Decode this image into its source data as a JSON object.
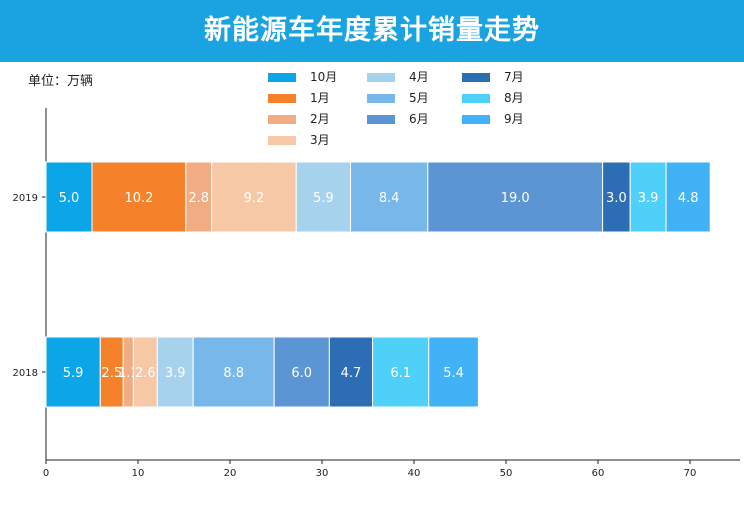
{
  "header": {
    "title": "新能源车年度累计销量走势"
  },
  "unit_label": "单位：万辆",
  "chart_data": {
    "type": "bar",
    "orientation": "horizontal",
    "stacked": true,
    "title": "新能源车年度累计销量走势",
    "xlabel": "",
    "ylabel": "",
    "xlim": [
      0,
      76
    ],
    "x_ticks": [
      0,
      10,
      20,
      30,
      40,
      50,
      60,
      70
    ],
    "categories": [
      "2019",
      "2018"
    ],
    "legend_position": "top",
    "series": [
      {
        "name": "10月",
        "color": "#0aa6e8",
        "values": [
          5.0,
          5.9
        ]
      },
      {
        "name": "1月",
        "color": "#f5822a",
        "values": [
          10.2,
          2.5
        ]
      },
      {
        "name": "2月",
        "color": "#f2ac84",
        "values": [
          2.8,
          1.1
        ]
      },
      {
        "name": "3月",
        "color": "#f6c8a6",
        "values": [
          9.2,
          2.6
        ]
      },
      {
        "name": "4月",
        "color": "#a6d2ee",
        "values": [
          5.9,
          3.9
        ]
      },
      {
        "name": "5月",
        "color": "#78b7ea",
        "values": [
          8.4,
          8.8
        ]
      },
      {
        "name": "6月",
        "color": "#5b95d3",
        "values": [
          19.0,
          6.0
        ]
      },
      {
        "name": "7月",
        "color": "#2c6db3",
        "values": [
          3.0,
          4.7
        ]
      },
      {
        "name": "8月",
        "color": "#4fd0f8",
        "values": [
          3.9,
          6.1
        ]
      },
      {
        "name": "9月",
        "color": "#42b2f6",
        "values": [
          4.8,
          5.4
        ]
      }
    ],
    "value_labels": [
      [
        "5.0",
        "10.2",
        "2.8",
        "9.2",
        "5.9",
        "8.4",
        "19.0",
        "3.0",
        "3.9",
        "4.8"
      ],
      [
        "5.9",
        "2.5",
        "1.1",
        "2.6",
        "3.9",
        "8.8",
        "6.0",
        "4.7",
        "6.1",
        "5.4"
      ]
    ]
  }
}
